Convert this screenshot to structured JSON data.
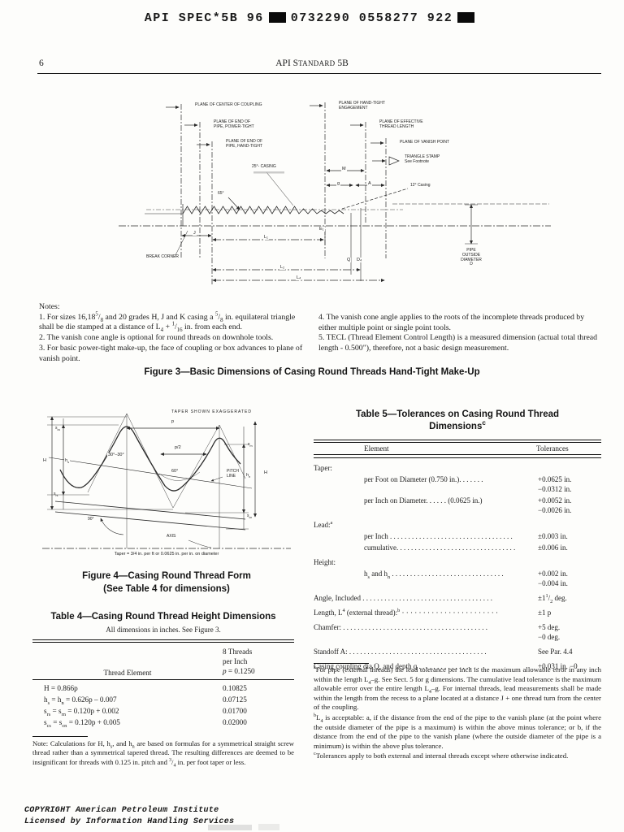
{
  "top_header": {
    "code_left": "API SPEC*5B 96",
    "code_right": "0732290 0558277 922"
  },
  "page_header": {
    "page_number": "6",
    "title_html": "API S<span class=\"sc\">TANDARD</span> 5B"
  },
  "figure3": {
    "caption": "Figure 3—Basic Dimensions of Casing Round Threads Hand-Tight Make-Up",
    "labels": {
      "plane_center_coupling": "PLANE OF CENTER OF COUPLING",
      "plane_end_power": "PLANE OF END OF\nPIPE, POWER-TIGHT",
      "plane_end_hand": "PLANE OF END OF\nPIPE, HAND-TIGHT",
      "casing_25": "25°- CASING",
      "plane_hand_tight": "PLANE OF HAND-TIGHT\nENGAGEMENT",
      "plane_effective": "PLANE OF EFFECTIVE\nTHREAD LENGTH",
      "plane_vanish": "PLANE OF VANISH POINT",
      "triangle_stamp": "TRIANGLE STAMP\nSee Footnote",
      "dim_m": "M",
      "dim_g": "g",
      "dim_a": "A",
      "deg_65": "65°",
      "casing_12": "12° Casing",
      "dim_j": "J",
      "dim_l1": "L₁",
      "dim_e1": "E₁",
      "dim_l2": "L₂",
      "dim_l4": "L₄",
      "dim_q": "Q",
      "dim_d4": "D₄",
      "break_corner": "BREAK CORNER",
      "pipe_od": "PIPE\nOUTSIDE\nDIAMETER\nD"
    }
  },
  "notes": {
    "heading": "Notes:",
    "left_html": [
      "1. For sizes 16,18<sup>5</sup>/<sub>8</sub> and 20 grades H, J and K casing a <sup>5</sup>/<sub>8</sub> in. equilateral triangle shall be die stamped at a distance of L<sub>4</sub> + <sup>1</sup>/<sub>16</sub> in. from each end.",
      "2. The vanish cone angle is optional for round threads on downhole tools.",
      "3. For basic power-tight make-up, the face of coupling or box advances to plane of vanish point."
    ],
    "right_html": [
      "4. The vanish cone angle applies to the roots of the incomplete threads produced by either multiple point or single point tools.",
      "5. TECL (Thread Element Control Length) is a measured dimension (actual total thread length - 0.500\"), therefore, not a basic design measurement."
    ]
  },
  "figure4": {
    "caption_line1": "Figure 4—Casing Round Thread Form",
    "caption_line2": "(See Table 4 for dimensions)",
    "labels": {
      "taper_exaggerated": "TAPER SHOWN EXAGGERATED",
      "dim_p": "p",
      "dim_p2": "p/2",
      "s_cs_html": "s<sub>cs</sub>",
      "h_s_html": "h<sub>s</sub>",
      "s_rs_html": "s<sub>rs</sub>",
      "s_rn_html": "s<sub>rn</sub>",
      "h_n_html": "h<sub>n</sub>",
      "s_cn_html": "s<sub>cn</sub>",
      "h_left": "H",
      "h_right": "H",
      "deg_30": "30°–30°",
      "deg_60": "60°",
      "deg_90": "90°",
      "pitch_line": "PITCH\nLINE",
      "axis": "AXIS",
      "taper_note": "Taper = 3/4 in. per ft or 0.0625 in. per in. on diameter"
    }
  },
  "table4": {
    "title": "Table 4—Casing Round Thread Height Dimensions",
    "subtitle": "All dimensions in inches. See Figure 3.",
    "col1_header": "Thread Element",
    "col2_header_lines": [
      "8 Threads",
      "per Inch",
      "<i>p</i> = 0.1250"
    ],
    "rows": [
      {
        "formula_html": "H = 0.866p",
        "value": "0.10825"
      },
      {
        "formula_html": "h<sub>s</sub> = h<sub>n</sub> = 0.626p – 0.007",
        "value": "0.07125"
      },
      {
        "formula_html": "s<sub>rs</sub> = s<sub>rn</sub> = 0.120p + 0.002",
        "value": "0.01700"
      },
      {
        "formula_html": "s<sub>cs</sub> = s<sub>cn</sub> = 0.120p + 0.005",
        "value": "0.02000"
      }
    ],
    "note_html": "Note: Calculations for H, h<sub>s</sub>, and h<sub>n</sub> are based on formulas for a symmetrical straight screw thread rather than a symmetrical tapered thread. The resulting differences are deemed to be insignificant for threads with 0.125 in. pitch and <sup>3</sup>/<sub>4</sub> in. per foot taper or less."
  },
  "table5": {
    "title_html": "Table 5—Tolerances on Casing Round Thread<br>Dimensions<sup>c</sup>",
    "col1_header": "Element",
    "col2_header": "Tolerances",
    "rows": [
      {
        "label_html": "Taper:",
        "values_html": []
      },
      {
        "label_html": "per Foot on Diameter (0.750 in.). . . . . . .",
        "values_html": [
          "+0.0625 in.",
          "−0.0312 in."
        ]
      },
      {
        "label_html": "per Inch on Diameter. . . . . . (0.0625 in.)",
        "values_html": [
          "+0.0052 in.",
          "−0.0026 in."
        ]
      },
      {
        "label_html": "Lead:<sup>a</sup>",
        "values_html": []
      },
      {
        "label_html": "per Inch . . . . . . . . . . . . . . . . . . . . . . . . . . . . . . . . . .",
        "values_html": [
          "±0.003 in."
        ]
      },
      {
        "label_html": "cumulative. . . . . . . . . . . . . . . . . . . . . . . . . . . . . . . . .",
        "values_html": [
          "±0.006 in."
        ]
      },
      {
        "label_html": "Height:",
        "values_html": []
      },
      {
        "label_html": "h<sub>s</sub> and h<sub>n</sub> . . . . . . . . . . . . . . . . . . . . . . . . . . . . . . .",
        "values_html": [
          "+0.002 in.",
          "−0.004 in."
        ]
      },
      {
        "label_html": "Angle, Included . . . . . . . . . . . . . . . . . . . . . . . . . . . . . . . . . . . .",
        "values_html": [
          "±1<sup>1</sup>/<sub>2</sub> deg."
        ]
      },
      {
        "label_html": "Length, L<sup>4</sup> (external thread):<sup>b</sup> · · · · · · · · · · · · · · · · · · · · · · ·",
        "values_html": [
          "±1 p"
        ]
      },
      {
        "label_html": "Chamfer: . . . . . . . . . . . . . . . . . . . . . . . . . . . . . . . . . . . . . . . .",
        "values_html": [
          "+5 deg.",
          "−0 deg."
        ]
      },
      {
        "label_html": "Standoff A: . . . . . . . . . . . . . . . . . . . . . . . . . . . . . . . . . . . . . .",
        "values_html": [
          "See Par. 4.4"
        ]
      },
      {
        "label_html": "Casing coupling dia Q, and depth q  . . . . . . . . . . . . . . . . .",
        "values_html": [
          "+0.031 in. −0"
        ]
      }
    ]
  },
  "footnotes_html": [
    "<sup>a</sup>For pipe (external threads) the lead tolerance per inch is the maximum allowable error in any inch within the length L<sub>4</sub>–g. See Sect. 5 for g dimensions. The cumulative lead tolerance is the maximum allowable error over the entire length L<sub>4</sub>–g. For internal threads, lead measurements shall be made within the length from the recess to a plane located at a distance J + one thread turn from the center of the coupling.",
    "<sup>b</sup>L<sub>4</sub> is acceptable: a, if the distance from the end of the pipe to the vanish plane (at the point where the outside diameter of the pipe is a maximum) is within the above minus tolerance; or b, if the distance from the end of the pipe to the vanish plane (where the outside diameter of the pipe is a minimum) is within the above plus tolerance.",
    "<sup>c</sup>Tolerances apply to both external and internal threads except where otherwise indicated."
  ],
  "footer": {
    "line1": "COPYRIGHT American Petroleum Institute",
    "line2": "Licensed by Information Handling Services"
  }
}
